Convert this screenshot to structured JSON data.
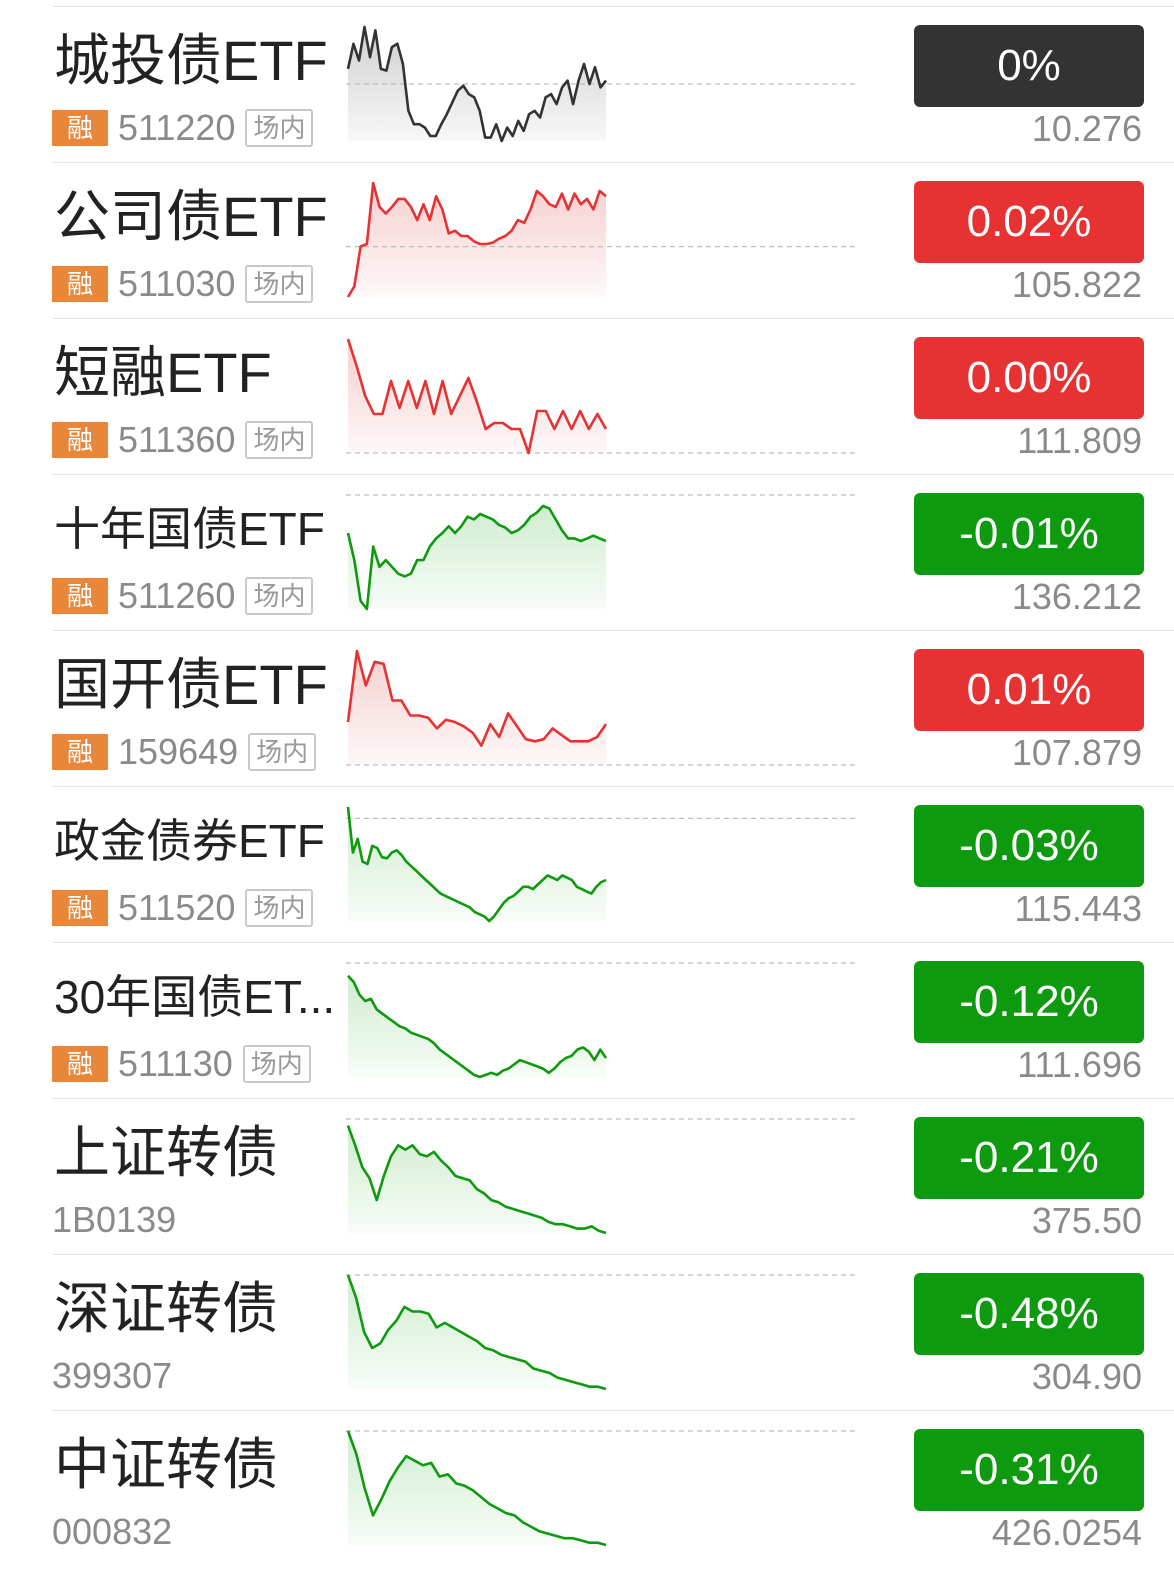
{
  "colors": {
    "up": "#e63232",
    "down": "#0e9a0e",
    "flat": "#333333",
    "rong_badge": "#e8873a"
  },
  "rows": [
    {
      "name": "城投债ETF",
      "rong": "融",
      "code": "511220",
      "market": "场内",
      "change": "0%",
      "price": "10.276",
      "trend": "flat",
      "spark": [
        45,
        60,
        50,
        70,
        52,
        68,
        45,
        44,
        58,
        60,
        48,
        20,
        12,
        12,
        10,
        5,
        5,
        12,
        18,
        25,
        32,
        35,
        30,
        28,
        20,
        4,
        4,
        12,
        2,
        10,
        5,
        14,
        8,
        18,
        20,
        16,
        28,
        30,
        24,
        34,
        38,
        24,
        38,
        48,
        36,
        46,
        34,
        38
      ],
      "baseline": 36
    },
    {
      "name": "公司债ETF",
      "rong": "融",
      "code": "511030",
      "market": "场内",
      "change": "0.02%",
      "price": "105.822",
      "trend": "up",
      "spark": [
        2,
        10,
        40,
        42,
        88,
        70,
        65,
        70,
        76,
        76,
        70,
        60,
        72,
        60,
        78,
        68,
        50,
        52,
        48,
        48,
        44,
        42,
        42,
        43,
        46,
        48,
        52,
        60,
        58,
        68,
        82,
        78,
        72,
        70,
        80,
        68,
        80,
        72,
        76,
        68,
        82,
        78
      ],
      "baseline": 40
    },
    {
      "name": "短融ETF",
      "rong": "融",
      "code": "511360",
      "market": "场内",
      "change": "0.00%",
      "price": "111.809",
      "trend": "up",
      "spark": [
        78,
        60,
        40,
        28,
        28,
        50,
        32,
        50,
        32,
        50,
        28,
        50,
        28,
        40,
        52,
        36,
        18,
        22,
        22,
        18,
        18,
        2,
        30,
        30,
        18,
        30,
        18,
        30,
        18,
        28,
        18
      ],
      "baseline": 2
    },
    {
      "name": "十年国债ETF",
      "rong": "融",
      "code": "511260",
      "market": "场内",
      "change": "-0.01%",
      "price": "136.212",
      "trend": "down",
      "spark": [
        70,
        50,
        20,
        14,
        60,
        45,
        50,
        45,
        40,
        38,
        40,
        50,
        50,
        60,
        66,
        70,
        75,
        70,
        75,
        82,
        80,
        84,
        82,
        80,
        76,
        74,
        70,
        72,
        76,
        82,
        85,
        90,
        88,
        80,
        72,
        66,
        66,
        64,
        66,
        68,
        66,
        64
      ],
      "baseline": 98
    },
    {
      "name": "国开债ETF",
      "rong": "融",
      "code": "159649",
      "market": "场内",
      "change": "0.01%",
      "price": "107.879",
      "trend": "up",
      "spark": [
        22,
        88,
        56,
        78,
        76,
        42,
        42,
        28,
        28,
        26,
        16,
        24,
        22,
        18,
        12,
        0,
        20,
        8,
        30,
        18,
        6,
        4,
        6,
        16,
        10,
        4,
        4,
        4,
        8,
        20
      ],
      "baseline": -18
    },
    {
      "name": "政金债券ETF",
      "rong": "融",
      "code": "511520",
      "market": "场内",
      "change": "-0.03%",
      "price": "115.443",
      "trend": "down",
      "spark": [
        100,
        60,
        72,
        52,
        50,
        66,
        64,
        56,
        55,
        60,
        62,
        58,
        52,
        48,
        44,
        40,
        36,
        32,
        28,
        24,
        22,
        20,
        18,
        16,
        14,
        12,
        8,
        6,
        4,
        0,
        4,
        10,
        16,
        20,
        22,
        26,
        30,
        30,
        28,
        32,
        36,
        40,
        38,
        36,
        40,
        38,
        36,
        30,
        28,
        26,
        24,
        30,
        34,
        36
      ],
      "baseline": 90
    },
    {
      "name": "30年国债ET...",
      "rong": "融",
      "code": "511130",
      "market": "场内",
      "change": "-0.12%",
      "price": "111.696",
      "trend": "down",
      "spark": [
        98,
        92,
        80,
        74,
        76,
        66,
        62,
        58,
        54,
        50,
        48,
        44,
        42,
        40,
        38,
        34,
        28,
        24,
        20,
        16,
        12,
        8,
        4,
        2,
        4,
        6,
        4,
        8,
        10,
        14,
        18,
        16,
        14,
        12,
        10,
        6,
        10,
        16,
        20,
        22,
        28,
        30,
        26,
        18,
        28,
        20
      ],
      "baseline": 110
    },
    {
      "name": "上证转债",
      "rong": "",
      "code": "1B0139",
      "market": "",
      "change": "-0.21%",
      "price": "375.50",
      "trend": "down",
      "spark": [
        98,
        80,
        60,
        50,
        30,
        52,
        70,
        80,
        76,
        80,
        72,
        70,
        74,
        66,
        60,
        52,
        50,
        48,
        40,
        36,
        30,
        28,
        24,
        22,
        20,
        18,
        16,
        14,
        10,
        8,
        8,
        6,
        4,
        4,
        6,
        2,
        0
      ],
      "baseline": 104
    },
    {
      "name": "深证转债",
      "rong": "",
      "code": "399307",
      "market": "",
      "change": "-0.48%",
      "price": "304.90",
      "trend": "down",
      "spark": [
        100,
        80,
        50,
        36,
        40,
        52,
        60,
        72,
        68,
        68,
        66,
        54,
        58,
        54,
        50,
        46,
        42,
        36,
        34,
        30,
        28,
        26,
        24,
        18,
        16,
        14,
        10,
        8,
        6,
        4,
        2,
        2,
        0
      ],
      "baseline": 100
    },
    {
      "name": "中证转债",
      "rong": "",
      "code": "000832",
      "market": "",
      "change": "-0.31%",
      "price": "426.0254",
      "trend": "down",
      "spark": [
        100,
        80,
        50,
        26,
        40,
        56,
        68,
        78,
        74,
        70,
        72,
        60,
        62,
        54,
        52,
        48,
        42,
        36,
        32,
        28,
        26,
        20,
        16,
        12,
        10,
        8,
        6,
        6,
        4,
        2,
        2,
        0
      ],
      "baseline": 100
    }
  ]
}
